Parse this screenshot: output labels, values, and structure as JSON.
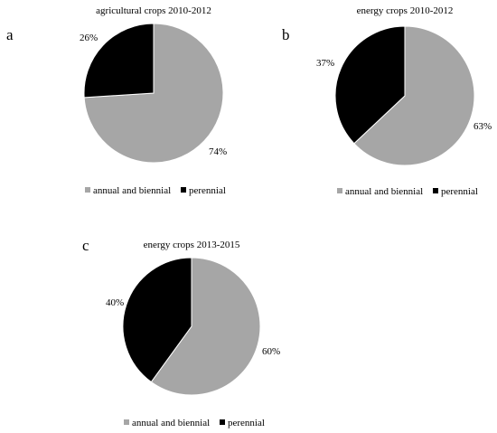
{
  "colors": {
    "annual_and_biennial": "#a6a6a6",
    "perennial": "#000000",
    "slice_border": "#ffffff"
  },
  "chart_data": [
    {
      "panel": "a",
      "type": "pie",
      "title": "agricultural crops 2010-2012",
      "categories": [
        "annual and biennial",
        "perennial"
      ],
      "values": [
        74,
        26
      ],
      "labels": [
        "74%",
        "26%"
      ],
      "legend": [
        "annual and biennial",
        "perennial"
      ],
      "legend_position": "bottom"
    },
    {
      "panel": "b",
      "type": "pie",
      "title": "energy crops 2010-2012",
      "categories": [
        "annual and biennial",
        "perennial"
      ],
      "values": [
        63,
        37
      ],
      "labels": [
        "63%",
        "37%"
      ],
      "legend": [
        "annual and biennial",
        "perennial"
      ],
      "legend_position": "bottom"
    },
    {
      "panel": "c",
      "type": "pie",
      "title": "energy crops 2013-2015",
      "categories": [
        "annual and biennial",
        "perennial"
      ],
      "values": [
        60,
        40
      ],
      "labels": [
        "60%",
        "40%"
      ],
      "legend": [
        "annual and biennial",
        "perennial"
      ],
      "legend_position": "bottom"
    }
  ]
}
